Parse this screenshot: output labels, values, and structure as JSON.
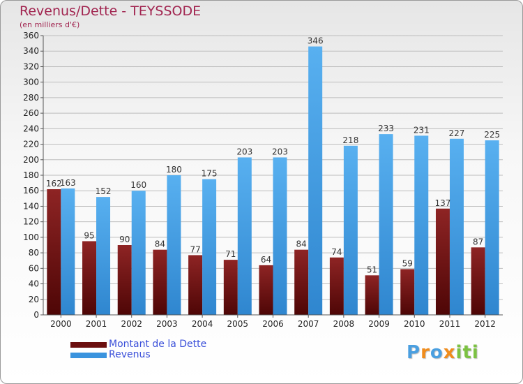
{
  "header": {
    "title": "Revenus/Dette - TEYSSODE",
    "subtitle": "(en milliers d'€)"
  },
  "chart_data": {
    "type": "bar",
    "title": "Revenus/Dette - TEYSSODE",
    "ylabel": "(en milliers d'€)",
    "xlabel": "",
    "ylim": [
      0,
      360
    ],
    "ytick_step": 20,
    "grid": true,
    "legend_position": "bottom-left",
    "categories": [
      "2000",
      "2001",
      "2002",
      "2003",
      "2004",
      "2005",
      "2006",
      "2007",
      "2008",
      "2009",
      "2010",
      "2011",
      "2012"
    ],
    "series": [
      {
        "name": "Montant de la Dette",
        "color": "#8b1a1a",
        "values": [
          162,
          95,
          90,
          84,
          77,
          71,
          64,
          84,
          74,
          51,
          59,
          137,
          87
        ]
      },
      {
        "name": "Revenus",
        "color": "#4aa3e6",
        "values": [
          163,
          152,
          160,
          180,
          175,
          203,
          203,
          346,
          218,
          233,
          231,
          227,
          225
        ]
      }
    ]
  },
  "legend": {
    "items": [
      {
        "label": "Montant de la Dette",
        "color": "#6b0f0f"
      },
      {
        "label": "Revenus",
        "color": "#3a93de"
      }
    ]
  },
  "logo": {
    "text": "Proxiti",
    "letters": [
      "P",
      "r",
      "o",
      "x",
      "i",
      "t",
      "i"
    ],
    "colors": [
      "#4a9fe0",
      "#f08c1c",
      "#4a9fe0",
      "#f08c1c",
      "#7cc242",
      "#7cc242",
      "#7cc242"
    ]
  }
}
